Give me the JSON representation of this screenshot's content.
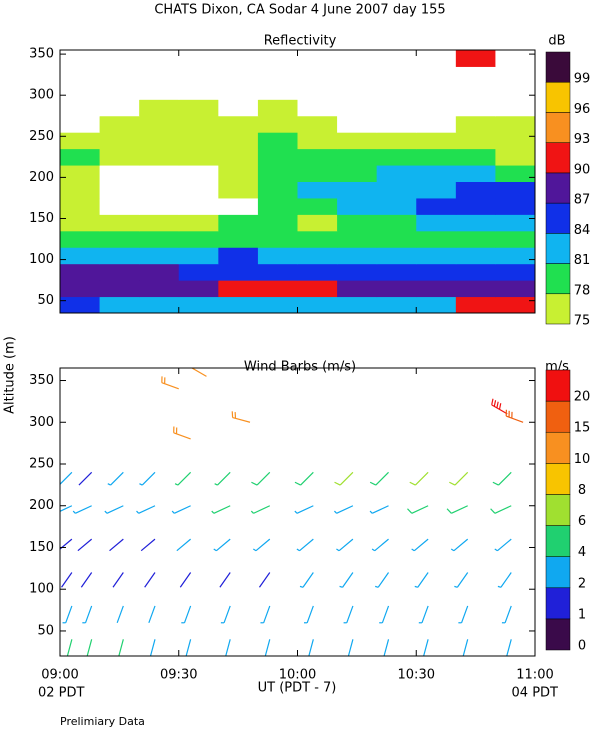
{
  "chart_data": {
    "type": "heatmap-barbs",
    "title": "CHATS Dixon, CA  Sodar    4 June 2007   day 155",
    "y_label": "Altitude (m)",
    "x_label": "UT  (PDT - 7)",
    "x_start_label": "02 PDT",
    "x_end_label": "04 PDT",
    "note": "Prelimiary Data",
    "xlim": [
      0,
      120
    ],
    "xticks": [
      {
        "value": 0,
        "label": "09:00"
      },
      {
        "value": 30,
        "label": "09:30"
      },
      {
        "value": 60,
        "label": "10:00"
      },
      {
        "value": 90,
        "label": "10:30"
      },
      {
        "value": 120,
        "label": "11:00"
      }
    ],
    "reflectivity": {
      "title": "Reflectivity",
      "unit": "dB",
      "ylim": [
        35,
        355
      ],
      "yticks": [
        50,
        100,
        150,
        200,
        250,
        300,
        350
      ],
      "x": [
        5,
        15,
        25,
        35,
        45,
        55,
        65,
        75,
        85,
        95,
        105,
        115
      ],
      "altitudes": [
        45,
        65,
        85,
        105,
        125,
        145,
        165,
        185,
        205,
        225,
        245,
        265,
        285,
        305,
        325,
        345
      ],
      "values": [
        [
          85,
          82,
          82,
          82,
          82,
          82,
          82,
          82,
          82,
          82,
          91,
          91
        ],
        [
          87,
          87,
          87,
          88,
          91,
          91,
          91,
          88,
          88,
          88,
          88,
          88
        ],
        [
          88,
          88,
          88,
          86,
          86,
          86,
          85,
          85,
          85,
          85,
          85,
          85
        ],
        [
          83,
          83,
          82,
          82,
          86,
          82,
          82,
          82,
          82,
          82,
          82,
          82
        ],
        [
          79,
          79,
          79,
          79,
          80,
          80,
          80,
          80,
          80,
          80,
          80,
          80
        ],
        [
          76,
          76,
          76,
          76,
          79,
          79,
          76,
          79,
          80,
          82,
          82,
          82
        ],
        [
          76,
          70,
          70,
          70,
          70,
          79,
          80,
          82,
          82,
          85,
          86,
          86
        ],
        [
          76,
          70,
          70,
          70,
          76,
          78,
          82,
          82,
          82,
          82,
          85,
          85
        ],
        [
          76,
          70,
          70,
          70,
          76,
          79,
          79,
          80,
          82,
          82,
          82,
          80
        ],
        [
          78,
          76,
          76,
          76,
          77,
          79,
          79,
          79,
          79,
          79,
          79,
          76
        ],
        [
          76,
          76,
          76,
          76,
          77,
          78,
          77,
          76,
          76,
          76,
          76,
          76
        ],
        [
          70,
          76,
          76,
          76,
          76,
          76,
          76,
          70,
          70,
          70,
          76,
          76
        ],
        [
          70,
          70,
          76,
          76,
          70,
          76,
          70,
          70,
          70,
          70,
          70,
          70
        ],
        [
          70,
          70,
          70,
          74,
          70,
          70,
          70,
          70,
          70,
          70,
          70,
          70
        ],
        [
          70,
          70,
          70,
          70,
          70,
          70,
          70,
          70,
          70,
          70,
          70,
          70
        ],
        [
          70,
          70,
          70,
          70,
          70,
          70,
          70,
          70,
          70,
          70,
          90,
          70
        ]
      ],
      "levels": [
        75,
        78,
        81,
        84,
        87,
        90,
        93,
        96,
        99
      ],
      "colors": [
        "#c8f032",
        "#20e050",
        "#10b4f0",
        "#1030e8",
        "#50169a",
        "#f01414",
        "#f89020",
        "#f8c400",
        "#3a0a3a"
      ]
    },
    "wind": {
      "title": "Wind Barbs (m/s)",
      "unit": "m/s",
      "ylim": [
        20,
        365
      ],
      "yticks": [
        50,
        100,
        150,
        200,
        250,
        300,
        350
      ],
      "x": [
        3,
        8,
        16,
        24,
        33,
        43,
        53,
        64,
        74,
        83,
        93,
        103,
        114
      ],
      "altitudes": [
        40,
        80,
        120,
        160,
        200,
        240
      ],
      "speed": [
        [
          4,
          4,
          4,
          3,
          3,
          3,
          3,
          3,
          3,
          3,
          3,
          3,
          3
        ],
        [
          3,
          3,
          2,
          2,
          3,
          3,
          3,
          3,
          3,
          3,
          3,
          3,
          3
        ],
        [
          1,
          1,
          1,
          1,
          1,
          1,
          1,
          3,
          3,
          3,
          3,
          3,
          3
        ],
        [
          1,
          1,
          1,
          1,
          2,
          3,
          3,
          3,
          3,
          3,
          3,
          3,
          3
        ],
        [
          3,
          3,
          3,
          3,
          3,
          4,
          4,
          3,
          3,
          3,
          5,
          5,
          5
        ],
        [
          3,
          1,
          3,
          3,
          4,
          4,
          5,
          5,
          7,
          5,
          7,
          7,
          5
        ]
      ],
      "direction": [
        195,
        200,
        215,
        230,
        245,
        225
      ],
      "upper": {
        "x": [
          30,
          37,
          33,
          48,
          113,
          117
        ],
        "y": [
          340,
          355,
          280,
          300,
          310,
          300
        ],
        "speed": [
          10,
          10,
          10,
          10,
          20,
          15
        ],
        "direction": [
          290,
          300,
          290,
          285,
          300,
          290
        ]
      },
      "levels": [
        0,
        1,
        2,
        4,
        6,
        8,
        10,
        15,
        20
      ],
      "colors": [
        "#3a0a4a",
        "#2020d8",
        "#10a8f0",
        "#20d070",
        "#a0e030",
        "#f8c400",
        "#f89020",
        "#f06010",
        "#f01010"
      ]
    }
  }
}
